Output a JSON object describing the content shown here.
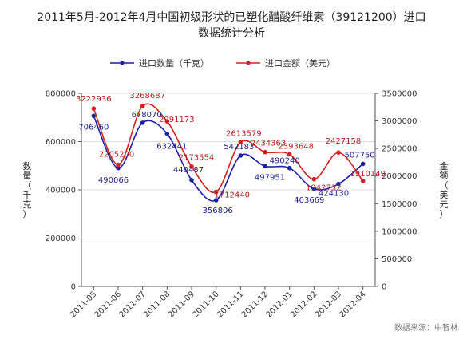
{
  "chart_data": {
    "type": "line",
    "title": "2011年5月-2012年4月中国初级形状的已塑化醋酸纤维素（39121200）进口数据统计分析",
    "title_lines": [
      "2011年5月-2012年4月中国初级形状的已塑化醋酸纤维素（39121200）进口",
      "数据统计分析"
    ],
    "categories": [
      "2011-05",
      "2011-06",
      "2011-07",
      "2011-08",
      "2011-09",
      "2011-10",
      "2011-11",
      "2011-12",
      "2012-01",
      "2012-02",
      "2012-03",
      "2012-04"
    ],
    "series": [
      {
        "name": "进口数量（千克）",
        "axis": "left",
        "color": "#1c1fa8",
        "values": [
          706460,
          490066,
          678070,
          632441,
          440487,
          356806,
          542183,
          497951,
          490240,
          403669,
          424130,
          507750
        ]
      },
      {
        "name": "进口金额（美元）",
        "axis": "right",
        "color": "#d42020",
        "values": [
          3222936,
          2205200,
          3268687,
          2991173,
          2173554,
          1712440,
          2613579,
          2434363,
          2393648,
          1942732,
          2427158,
          1910149
        ]
      }
    ],
    "ylabel": "数量（千克）",
    "ylim": [
      0,
      800000
    ],
    "yticks": [
      "0",
      "200000",
      "400000",
      "600000",
      "800000"
    ],
    "y2label": "金额（美元）",
    "y2lim": [
      0,
      3500000
    ],
    "y2ticks": [
      "0",
      "500000",
      "1000000",
      "1500000",
      "2000000",
      "2500000",
      "3000000",
      "3500000"
    ],
    "legend_position": "top",
    "grid": true,
    "source": "数据来源：中智林"
  }
}
